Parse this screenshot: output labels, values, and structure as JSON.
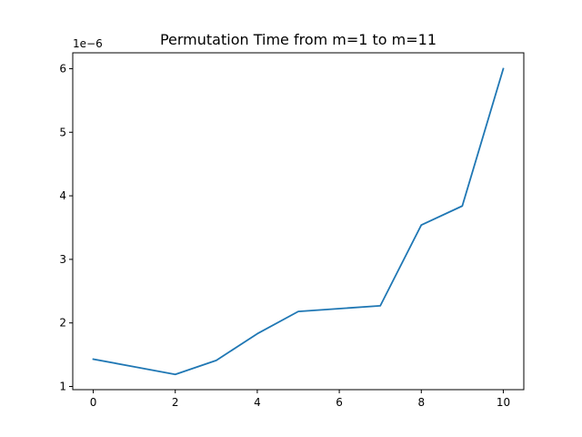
{
  "chart_data": {
    "type": "line",
    "title": "Permutation Time from m=1 to m=11",
    "xlabel": "",
    "ylabel": "",
    "y_offset_text": "1e−6",
    "x": [
      0,
      1,
      2,
      3,
      4,
      5,
      6,
      7,
      8,
      9,
      10
    ],
    "series": [
      {
        "values": [
          1.43e-06,
          1.31e-06,
          1.19e-06,
          1.41e-06,
          1.83e-06,
          2.18e-06,
          2.225e-06,
          2.27e-06,
          3.54e-06,
          3.84e-06,
          6e-06
        ]
      }
    ],
    "xlim": [
      -0.5,
      10.5
    ],
    "ylim": [
      9.5e-07,
      6.25e-06
    ],
    "xticks": [
      0,
      2,
      4,
      6,
      8,
      10
    ],
    "xtick_labels": [
      "0",
      "2",
      "4",
      "6",
      "8",
      "10"
    ],
    "yticks": [
      1e-06,
      2e-06,
      3e-06,
      4e-06,
      5e-06,
      6e-06
    ],
    "ytick_labels": [
      "1",
      "2",
      "3",
      "4",
      "5",
      "6"
    ],
    "grid": false,
    "line_color": "#1f77b4"
  }
}
